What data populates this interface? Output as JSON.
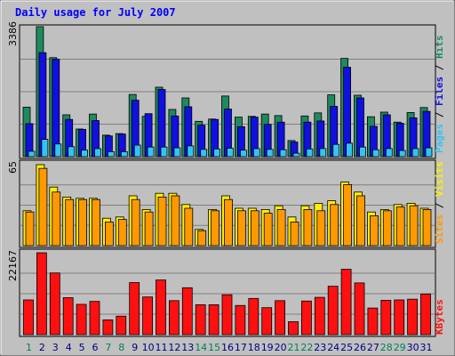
{
  "chart_data": [
    {
      "type": "bar",
      "title": "Daily usage for July 2007",
      "categories": [
        "1",
        "2",
        "3",
        "4",
        "5",
        "6",
        "7",
        "8",
        "9",
        "10",
        "11",
        "12",
        "13",
        "14",
        "15",
        "16",
        "17",
        "18",
        "19",
        "20",
        "21",
        "22",
        "23",
        "24",
        "25",
        "26",
        "27",
        "28",
        "29",
        "30",
        "31"
      ],
      "weekend_days": [
        "1",
        "7",
        "8",
        "14",
        "15",
        "21",
        "22",
        "28",
        "29"
      ],
      "ymax_label": "3386",
      "ylim": [
        0,
        3386
      ],
      "legend": [
        "Pages",
        "Files",
        "Hits"
      ],
      "colors": {
        "hits": "#1e8a5e",
        "files": "#1010e0",
        "pages": "#33c4f2"
      },
      "series": [
        {
          "name": "Hits",
          "values": [
            1290,
            3386,
            2580,
            1090,
            720,
            1110,
            560,
            600,
            1620,
            1050,
            1810,
            1230,
            1530,
            920,
            980,
            1580,
            1030,
            1050,
            1110,
            1070,
            420,
            1060,
            1140,
            1610,
            2560,
            1600,
            1040,
            1160,
            900,
            1150,
            1280
          ]
        },
        {
          "name": "Files",
          "values": [
            860,
            2710,
            2540,
            970,
            710,
            940,
            540,
            590,
            1470,
            1120,
            1750,
            1060,
            1300,
            820,
            970,
            1240,
            780,
            1030,
            840,
            900,
            380,
            900,
            930,
            1310,
            2330,
            1530,
            790,
            1090,
            870,
            1010,
            1180
          ]
        },
        {
          "name": "Pages",
          "values": [
            140,
            450,
            330,
            260,
            170,
            210,
            130,
            130,
            300,
            250,
            250,
            230,
            280,
            190,
            200,
            220,
            170,
            210,
            190,
            180,
            90,
            200,
            210,
            320,
            350,
            250,
            180,
            210,
            160,
            210,
            230
          ]
        }
      ]
    },
    {
      "type": "bar",
      "ymax_label": "65",
      "ylim": [
        0,
        65
      ],
      "legend": [
        "Sites",
        "Visits"
      ],
      "colors": {
        "visits": "#ffee00",
        "sites": "#ff9900"
      },
      "series": [
        {
          "name": "Visits",
          "values": [
            28,
            65,
            47,
            39,
            38,
            38,
            22,
            23,
            40,
            29,
            42,
            42,
            33,
            13,
            29,
            40,
            30,
            30,
            29,
            32,
            23,
            32,
            34,
            36,
            51,
            43,
            27,
            29,
            33,
            34,
            30
          ]
        },
        {
          "name": "Sites",
          "values": [
            27,
            62,
            43,
            37,
            37,
            37,
            19,
            21,
            37,
            27,
            39,
            40,
            30,
            12,
            28,
            37,
            28,
            28,
            26,
            29,
            19,
            29,
            28,
            33,
            49,
            40,
            24,
            28,
            31,
            32,
            29
          ]
        }
      ]
    },
    {
      "type": "bar",
      "ymax_label": "22167",
      "ylim": [
        0,
        22167
      ],
      "legend": [
        "KBytes"
      ],
      "colors": {
        "kbytes": "#ff1010"
      },
      "series": [
        {
          "name": "KBytes",
          "values": [
            9400,
            22167,
            16700,
            10000,
            8200,
            9000,
            4000,
            5000,
            14100,
            10200,
            14800,
            9200,
            12700,
            8100,
            8100,
            10800,
            7900,
            9800,
            7300,
            9200,
            3500,
            9100,
            10100,
            13100,
            17700,
            14000,
            7200,
            9300,
            9400,
            9600,
            11000
          ]
        }
      ]
    }
  ]
}
